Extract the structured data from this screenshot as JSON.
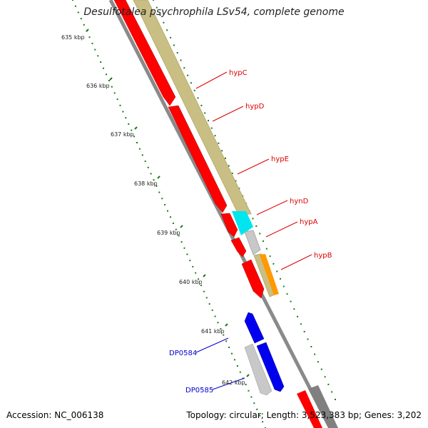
{
  "title": "Desulfotalea psychrophila LSv54, complete genome",
  "footer": {
    "accession": "Accession: NC_006138",
    "summary": "Topology: circular; Length: 3,523,383 bp; Genes: 3,202"
  },
  "ruler_labels": [
    "635 kbp",
    "636 kbp",
    "637 kbp",
    "638 kbp",
    "639 kbp",
    "640 kbp",
    "641 kbp",
    "642 kbp"
  ],
  "gene_labels": {
    "forward": [
      "hypC",
      "hypD",
      "hypE",
      "hynD",
      "hypA",
      "hypB"
    ],
    "reverse": [
      "DP0584",
      "DP0585"
    ]
  },
  "colors": {
    "forward_label": "#dd0000",
    "reverse_label": "#0000cc",
    "red_gene": "#ff0000",
    "blue_gene": "#0000ee",
    "tan_track": "#c9bf85",
    "cyan_track": "#00e5ee",
    "orange_track": "#ff9900",
    "grey_track": "#c8c8c8",
    "backbone": "#808080",
    "ruler": "#1a7a1a"
  }
}
